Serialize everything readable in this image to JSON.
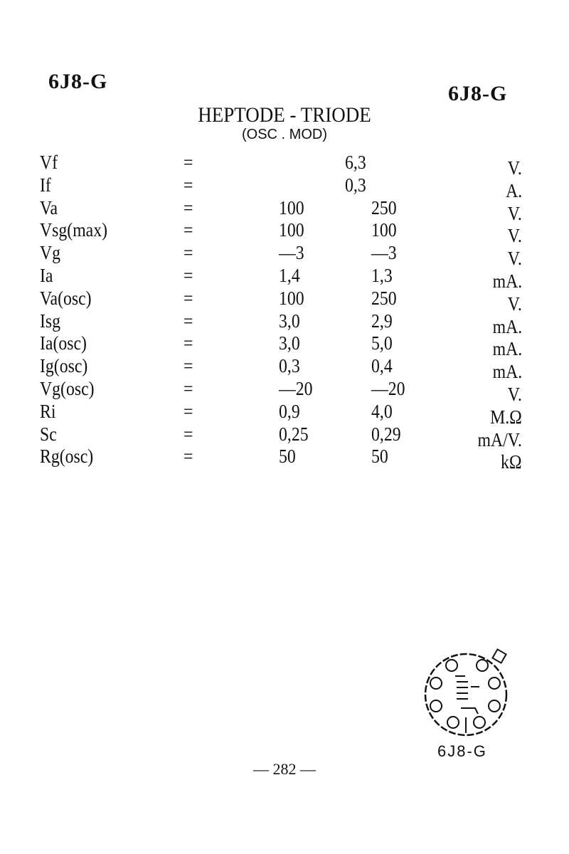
{
  "header": {
    "tube_left": "6J8-G",
    "tube_right": "6J8-G"
  },
  "title": "HEPTODE - TRIODE",
  "subtitle": "(OSC . MOD)",
  "rows": [
    {
      "label": "Vf",
      "eq": "=",
      "single": "6,3",
      "unit": "V."
    },
    {
      "label": "If",
      "eq": "=",
      "single": "0,3",
      "unit": "A."
    },
    {
      "label": "Va",
      "eq": "=",
      "v1": "100",
      "v2": "250",
      "unit": "V."
    },
    {
      "label": "Vsg(max)",
      "eq": "=",
      "v1": "100",
      "v2": "100",
      "unit": "V."
    },
    {
      "label": "Vg",
      "eq": "=",
      "v1": "—3",
      "v2": "—3",
      "unit": "V."
    },
    {
      "label": "Ia",
      "eq": "=",
      "v1": "1,4",
      "v2": "1,3",
      "unit": "mA."
    },
    {
      "label": "Va(osc)",
      "eq": "=",
      "v1": "100",
      "v2": "250",
      "unit": "V."
    },
    {
      "label": "Isg",
      "eq": "=",
      "v1": "3,0",
      "v2": "2,9",
      "unit": "mA."
    },
    {
      "label": "Ia(osc)",
      "eq": "=",
      "v1": "3,0",
      "v2": "5,0",
      "unit": "mA."
    },
    {
      "label": "Ig(osc)",
      "eq": "=",
      "v1": "0,3",
      "v2": "0,4",
      "unit": "mA."
    },
    {
      "label": "Vg(osc)",
      "eq": "=",
      "v1": "—20",
      "v2": "—20",
      "unit": "V."
    },
    {
      "label": "Ri",
      "eq": "=",
      "v1": "0,9",
      "v2": "4,0",
      "unit": "M.Ω"
    },
    {
      "label": "Sc",
      "eq": "=",
      "v1": "0,25",
      "v2": "0,29",
      "unit": "mA/V."
    },
    {
      "label": "Rg(osc)",
      "eq": "=",
      "v1": "50",
      "v2": "50",
      "unit": "kΩ"
    }
  ],
  "diagram": {
    "caption": "6J8-G",
    "icon": "tube-base-pinout"
  },
  "page_number": "— 282 —"
}
